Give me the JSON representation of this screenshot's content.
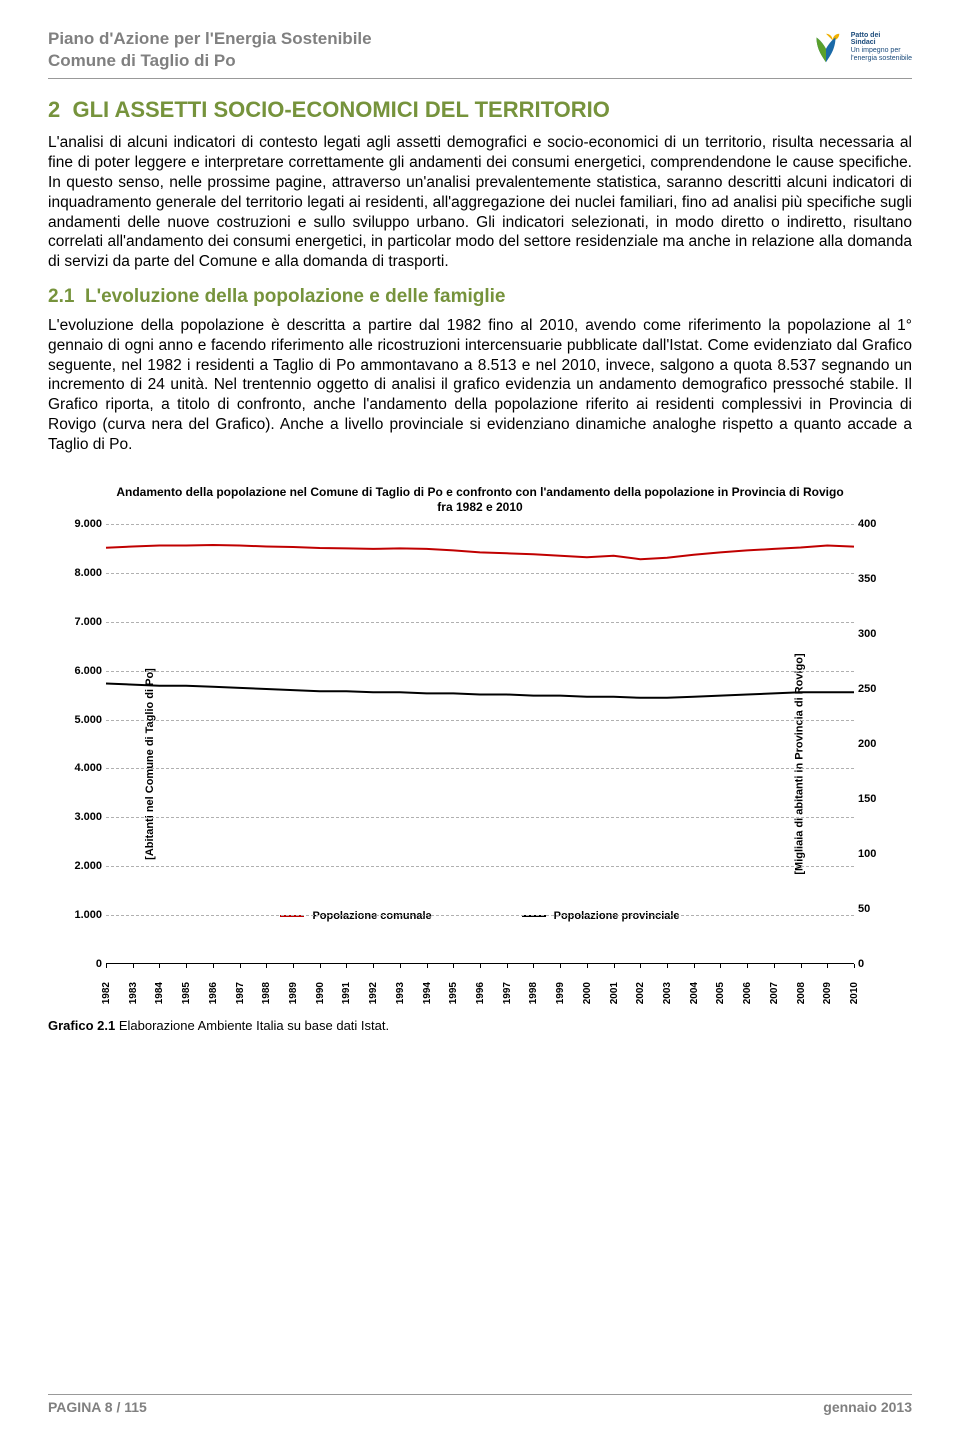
{
  "header": {
    "line1": "Piano d'Azione per l'Energia Sostenibile",
    "line2": "Comune di Taglio di Po",
    "logo": {
      "label1": "Patto dei",
      "label2": "Sindaci",
      "label3": "Un impegno per",
      "label4": "l'energia sostenibile"
    }
  },
  "section": {
    "num": "2",
    "title": "GLI ASSETTI SOCIO-ECONOMICI DEL TERRITORIO",
    "para1": "L'analisi di alcuni indicatori di contesto legati agli assetti demografici e socio-economici di un territorio, risulta necessaria al fine di poter leggere e interpretare correttamente gli andamenti dei consumi energetici, comprendendone le cause specifiche. In questo senso, nelle prossime pagine, attraverso un'analisi prevalentemente statistica, saranno descritti alcuni indicatori di inquadramento generale del territorio legati ai residenti, all'aggregazione dei nuclei familiari, fino ad analisi più specifiche sugli andamenti delle nuove costruzioni e sullo sviluppo urbano. Gli indicatori selezionati, in modo diretto o indiretto, risultano correlati all'andamento dei consumi energetici, in particolar modo del settore residenziale ma anche in relazione alla domanda di servizi da parte del Comune e alla domanda di trasporti.",
    "sub_num": "2.1",
    "sub_title": "L'evoluzione della popolazione e delle famiglie",
    "para2": "L'evoluzione della popolazione è descritta a partire dal 1982 fino al 2010, avendo come riferimento la popolazione al 1° gennaio di ogni anno e facendo riferimento alle ricostruzioni intercensuarie pubblicate dall'Istat. Come evidenziato dal Grafico seguente, nel 1982 i residenti a Taglio di Po ammontavano a 8.513 e nel 2010, invece, salgono a quota 8.537 segnando un incremento di 24 unità. Nel trentennio oggetto di analisi il grafico evidenzia un andamento demografico pressoché stabile. Il Grafico riporta, a titolo di confronto, anche l'andamento della popolazione riferito ai residenti complessivi in Provincia di Rovigo (curva nera del Grafico). Anche a livello provinciale si evidenziano dinamiche analoghe rispetto a quanto accade a Taglio di Po."
  },
  "chart": {
    "type": "line",
    "title": "Andamento della popolazione nel Comune di Taglio di Po e confronto con l'andamento della popolazione in Provincia di Rovigo fra 1982 e 2010",
    "y_left": {
      "label": "[Abitanti nel Comune di Taglio di Po]",
      "min": 0,
      "max": 9000,
      "step": 1000,
      "ticks": [
        "0",
        "1.000",
        "2.000",
        "3.000",
        "4.000",
        "5.000",
        "6.000",
        "7.000",
        "8.000",
        "9.000"
      ]
    },
    "y_right": {
      "label": "[Migliaia di abitanti in Provincia di Rovigo]",
      "min": 0,
      "max": 400,
      "step": 50,
      "ticks": [
        "0",
        "50",
        "100",
        "150",
        "200",
        "250",
        "300",
        "350",
        "400"
      ]
    },
    "x": {
      "labels": [
        "1982",
        "1983",
        "1984",
        "1985",
        "1986",
        "1987",
        "1988",
        "1989",
        "1990",
        "1991",
        "1992",
        "1993",
        "1994",
        "1995",
        "1996",
        "1997",
        "1998",
        "1999",
        "2000",
        "2001",
        "2002",
        "2003",
        "2004",
        "2005",
        "2006",
        "2007",
        "2008",
        "2009",
        "2010"
      ]
    },
    "series": [
      {
        "name": "Popolazione comunale",
        "color": "#c00000",
        "width": 2,
        "axis": "left",
        "values": [
          8513,
          8540,
          8560,
          8560,
          8570,
          8560,
          8540,
          8530,
          8510,
          8500,
          8490,
          8500,
          8490,
          8460,
          8420,
          8400,
          8380,
          8350,
          8320,
          8350,
          8280,
          8310,
          8370,
          8420,
          8460,
          8490,
          8520,
          8560,
          8537
        ]
      },
      {
        "name": "Popolazione provinciale",
        "color": "#000000",
        "width": 2,
        "axis": "right",
        "values": [
          255,
          254,
          253,
          253,
          252,
          251,
          250,
          249,
          248,
          248,
          247,
          247,
          246,
          246,
          245,
          245,
          244,
          244,
          243,
          243,
          242,
          242,
          243,
          244,
          245,
          246,
          247,
          247,
          247
        ]
      }
    ],
    "legend": [
      "Popolazione  comunale",
      "Popolazione  provinciale"
    ],
    "grid_color": "#b0b0b0",
    "background_color": "#ffffff"
  },
  "caption": {
    "bold": "Grafico 2.1",
    "rest": " Elaborazione Ambiente Italia su base dati Istat."
  },
  "footer": {
    "left": "PAGINA 8 / 115",
    "right": "gennaio 2013"
  }
}
